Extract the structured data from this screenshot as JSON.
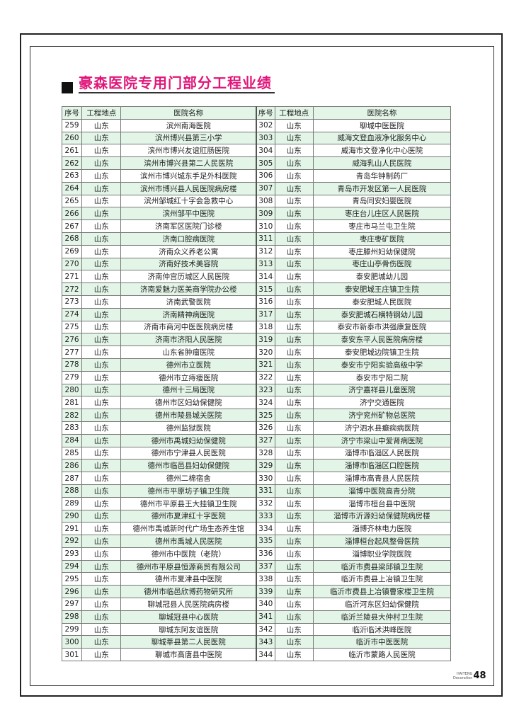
{
  "title": "豪森医院专用门部分工程业绩",
  "table": {
    "headers": [
      "序号",
      "工程地点",
      "医院名称",
      "序号",
      "工程地点",
      "医院名称"
    ],
    "left": [
      [
        "259",
        "山东",
        "滨州南海医院"
      ],
      [
        "260",
        "山东",
        "滨州博兴县第三小学"
      ],
      [
        "261",
        "山东",
        "滨州市博兴友谊肛肠医院"
      ],
      [
        "262",
        "山东",
        "滨州市博兴县第二人民医院"
      ],
      [
        "263",
        "山东",
        "滨州市博兴城东手足外科医院"
      ],
      [
        "264",
        "山东",
        "滨州市博兴县人民医院病房楼"
      ],
      [
        "265",
        "山东",
        "滨州邹城红十字会急救中心"
      ],
      [
        "266",
        "山东",
        "滨州邹平中医院"
      ],
      [
        "267",
        "山东",
        "济南军区医院门诊楼"
      ],
      [
        "268",
        "山东",
        "济南口腔病医院"
      ],
      [
        "269",
        "山东",
        "济南众义养老公寓"
      ],
      [
        "270",
        "山东",
        "济南好技术美容院"
      ],
      [
        "271",
        "山东",
        "济南仲宫历城区人民医院"
      ],
      [
        "272",
        "山东",
        "济南爱魅力医美商学院办公楼"
      ],
      [
        "273",
        "山东",
        "济南武警医院"
      ],
      [
        "274",
        "山东",
        "济南精神病医院"
      ],
      [
        "275",
        "山东",
        "济南市商河中医医院病房楼"
      ],
      [
        "276",
        "山东",
        "济南市济阳人民医院"
      ],
      [
        "277",
        "山东",
        "山东省肿瘤医院"
      ],
      [
        "278",
        "山东",
        "德州市立医院"
      ],
      [
        "279",
        "山东",
        "德州市立痔瘘医院"
      ],
      [
        "280",
        "山东",
        "德州十三局医院"
      ],
      [
        "281",
        "山东",
        "德州市区妇幼保健院"
      ],
      [
        "282",
        "山东",
        "德州市陵县城关医院"
      ],
      [
        "283",
        "山东",
        "德州监狱医院"
      ],
      [
        "284",
        "山东",
        "德州市禹城妇幼保健院"
      ],
      [
        "285",
        "山东",
        "德州市宁津县人民医院"
      ],
      [
        "286",
        "山东",
        "德州市临邑县妇幼保健院"
      ],
      [
        "287",
        "山东",
        "德州二棉宿舍"
      ],
      [
        "288",
        "山东",
        "德州市平原坊子镇卫生院"
      ],
      [
        "289",
        "山东",
        "德州市平原县王大挂镇卫生院"
      ],
      [
        "290",
        "山东",
        "德州市夏津红十字医院"
      ],
      [
        "291",
        "山东",
        "德州市禹城新时代广场生态养生馆"
      ],
      [
        "292",
        "山东",
        "德州市禹城人民医院"
      ],
      [
        "293",
        "山东",
        "德州市中医院（老院）"
      ],
      [
        "294",
        "山东",
        "德州市平原县恒源商贸有限公司"
      ],
      [
        "295",
        "山东",
        "德州市夏津县中医院"
      ],
      [
        "296",
        "山东",
        "德州市临邑欣博药物研究所"
      ],
      [
        "297",
        "山东",
        "聊城冠县人民医院病房楼"
      ],
      [
        "298",
        "山东",
        "聊城冠县中心医院"
      ],
      [
        "299",
        "山东",
        "聊城东阿友谊医院"
      ],
      [
        "300",
        "山东",
        "聊城莘县第二人民医院"
      ],
      [
        "301",
        "山东",
        "聊城市高唐县中医院"
      ]
    ],
    "right": [
      [
        "302",
        "山东",
        "聊城中医医院"
      ],
      [
        "303",
        "山东",
        "威海文登血液净化服务中心"
      ],
      [
        "304",
        "山东",
        "威海市文登净化中心医院"
      ],
      [
        "305",
        "山东",
        "威海乳山人民医院"
      ],
      [
        "306",
        "山东",
        "青岛华钟制药厂"
      ],
      [
        "307",
        "山东",
        "青岛市开发区第一人民医院"
      ],
      [
        "308",
        "山东",
        "青岛同安妇婴医院"
      ],
      [
        "309",
        "山东",
        "枣庄台儿庄区人民医院"
      ],
      [
        "310",
        "山东",
        "枣庄市马兰屯卫生院"
      ],
      [
        "311",
        "山东",
        "枣庄枣矿医院"
      ],
      [
        "312",
        "山东",
        "枣庄滕州妇幼保健院"
      ],
      [
        "313",
        "山东",
        "枣庄山亭骨伤医院"
      ],
      [
        "314",
        "山东",
        "泰安肥城幼儿园"
      ],
      [
        "315",
        "山东",
        "泰安肥城王庄镇卫生院"
      ],
      [
        "316",
        "山东",
        "泰安肥城人民医院"
      ],
      [
        "317",
        "山东",
        "泰安肥城石横特钢幼儿园"
      ],
      [
        "318",
        "山东",
        "泰安市新泰市洪强康复医院"
      ],
      [
        "319",
        "山东",
        "泰安东平人民医院病房楼"
      ],
      [
        "320",
        "山东",
        "泰安肥城边院镇卫生院"
      ],
      [
        "321",
        "山东",
        "泰安市宁阳实验高级中学"
      ],
      [
        "322",
        "山东",
        "泰安市宁阳二院"
      ],
      [
        "323",
        "山东",
        "济宁嘉祥县儿童医院"
      ],
      [
        "324",
        "山东",
        "济宁交通医院"
      ],
      [
        "325",
        "山东",
        "济宁兖州矿物总医院"
      ],
      [
        "326",
        "山东",
        "济宁泗水县癫痫病医院"
      ],
      [
        "327",
        "山东",
        "济宁市梁山中爱肾病医院"
      ],
      [
        "328",
        "山东",
        "淄博市临淄区人民医院"
      ],
      [
        "329",
        "山东",
        "淄博市临淄区口腔医院"
      ],
      [
        "330",
        "山东",
        "淄博市高青县人民医院"
      ],
      [
        "331",
        "山东",
        "淄博中医院高青分院"
      ],
      [
        "332",
        "山东",
        "淄博市桓台县中医院"
      ],
      [
        "333",
        "山东",
        "淄博市沂源妇幼保健院病房楼"
      ],
      [
        "334",
        "山东",
        "淄博齐林电力医院"
      ],
      [
        "335",
        "山东",
        "淄博桓台起风整骨医院"
      ],
      [
        "336",
        "山东",
        "淄博职业学院医院"
      ],
      [
        "337",
        "山东",
        "临沂市费县梁邱镇卫生院"
      ],
      [
        "338",
        "山东",
        "临沂市费县上冶镇卫生院"
      ],
      [
        "339",
        "山东",
        "临沂市费县上冶镇曹家楼卫生院"
      ],
      [
        "340",
        "山东",
        "临沂河东区妇幼保健院"
      ],
      [
        "341",
        "山东",
        "临沂兰陵县大仲村卫生院"
      ],
      [
        "342",
        "山东",
        "临沂临沭洪峰医院"
      ],
      [
        "343",
        "山东",
        "临沂市中医医院"
      ],
      [
        "344",
        "山东",
        "临沂市蒙路人民医院"
      ]
    ]
  },
  "footer": {
    "brand_line1": "HAITENG",
    "brand_line2": "Decoration",
    "page_number": "48"
  },
  "colors": {
    "title": "#e0177a",
    "row_alt": "#e2f5e7",
    "border": "#777777"
  }
}
